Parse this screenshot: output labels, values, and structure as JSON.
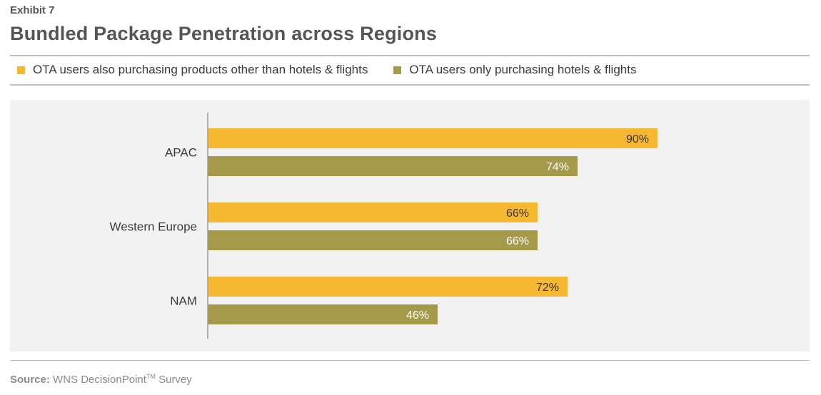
{
  "header": {
    "exhibit": "Exhibit 7"
  },
  "chart_data": {
    "type": "bar",
    "orientation": "horizontal",
    "title": "Bundled Package Penetration across Regions",
    "categories": [
      "APAC",
      "Western Europe",
      "NAM"
    ],
    "series": [
      {
        "name": "OTA users also purchasing products other than hotels & flights",
        "color": "#f7b831",
        "values": [
          90,
          66,
          72
        ],
        "labels": [
          "90%",
          "66%",
          "72%"
        ]
      },
      {
        "name": "OTA users only purchasing hotels & flights",
        "color": "#a59a4a",
        "values": [
          74,
          66,
          46
        ],
        "labels": [
          "74%",
          "66%",
          "46%"
        ]
      }
    ],
    "xlim": [
      0,
      100
    ],
    "grid": false,
    "legend_position": "top-left"
  },
  "footer": {
    "source_label": "Source:",
    "source_text": "WNS DecisionPoint",
    "trademark": "TM",
    "source_suffix": "Survey"
  }
}
